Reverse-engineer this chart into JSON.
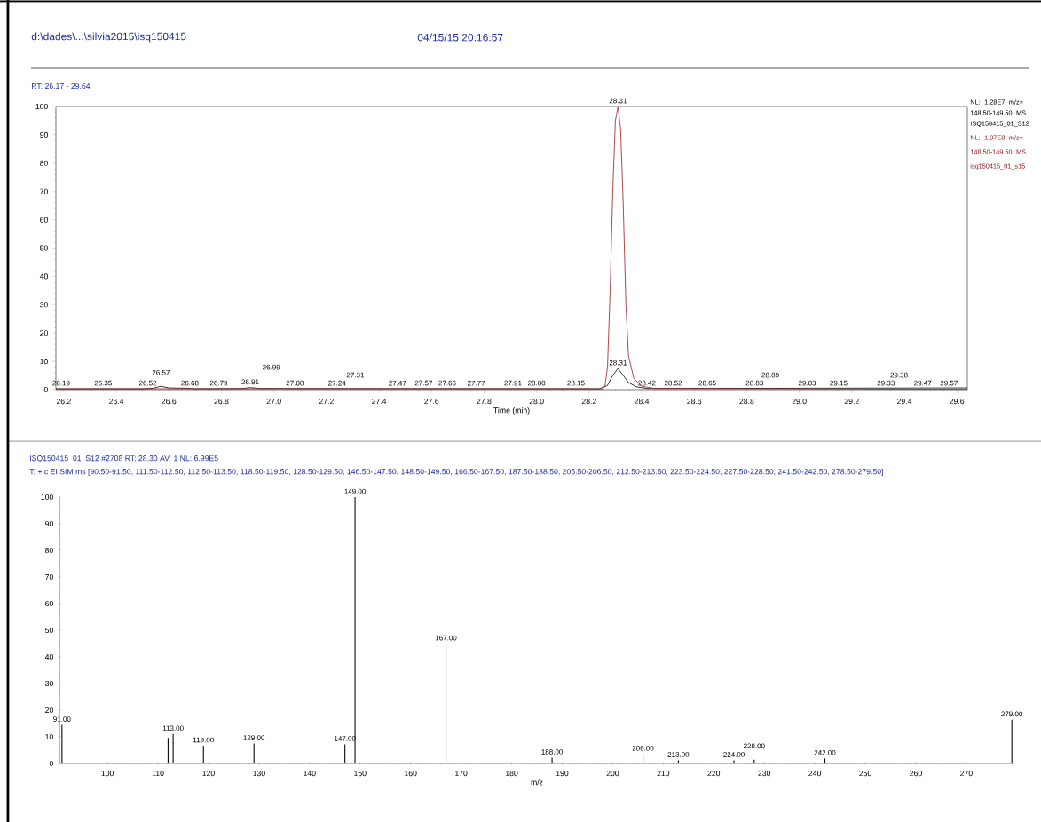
{
  "chart_data": [
    {
      "type": "line",
      "title": "d:\\dades\\...\\silvia2015\\isq150415",
      "subtitle": "04/15/15 20:16:57",
      "xlabel": "Time (min)",
      "xlim": [
        26.17,
        29.64
      ],
      "ylim": [
        0,
        100
      ],
      "xticks": [
        26.2,
        26.4,
        26.6,
        26.8,
        {
          "value": 27.0,
          "label": "27.0"
        },
        27.2,
        27.4,
        27.6,
        27.8,
        {
          "value": 28.0,
          "label": "28.0"
        },
        28.2,
        28.4,
        28.6,
        28.8,
        {
          "value": 29.0,
          "label": "29.0"
        },
        29.2,
        29.4,
        29.6
      ],
      "yticks": [
        0,
        10,
        20,
        30,
        40,
        50,
        60,
        70,
        80,
        90,
        100
      ],
      "series": [
        {
          "name": "NL: 1.28E7 m/z= 148.50-149.50 MS ISQ150415_01_S12",
          "color": "#000000",
          "x": [
            26.17,
            26.5,
            26.54,
            26.57,
            26.6,
            26.66,
            26.7,
            26.88,
            26.91,
            26.95,
            28.24,
            28.27,
            28.29,
            28.31,
            28.33,
            28.35,
            28.38,
            28.42,
            29.64
          ],
          "values": [
            0.3,
            0.3,
            0.5,
            1.2,
            0.6,
            0.5,
            0.3,
            0.4,
            0.7,
            0.4,
            0.3,
            1.5,
            5,
            7.5,
            5,
            2.5,
            1,
            0.4,
            0.6
          ]
        },
        {
          "name": "NL: 1.97E8 m/z= 148.50-149.50 MS isq150415_01_s15",
          "color": "#9b1c1c",
          "x": [
            26.17,
            28.25,
            28.26,
            28.27,
            28.28,
            28.29,
            28.3,
            28.31,
            28.32,
            28.33,
            28.34,
            28.35,
            28.37,
            28.4,
            28.45,
            29.64
          ],
          "values": [
            0.3,
            0.3,
            1,
            8,
            35,
            70,
            95,
            100,
            92,
            65,
            30,
            12,
            4,
            1.2,
            0.4,
            0.1
          ]
        }
      ],
      "annotations": [
        "RT: 26.17 - 29.64",
        {
          "text": "26.19",
          "x": 26.19,
          "y": 0.3
        },
        {
          "text": "26.35",
          "x": 26.35,
          "y": 0.3
        },
        {
          "text": "26.52",
          "x": 26.52,
          "y": 0.3
        },
        {
          "text": "26.57",
          "x": 26.57,
          "y": 1.2
        },
        {
          "text": "26.68",
          "x": 26.68,
          "y": 0.3
        },
        {
          "text": "26.79",
          "x": 26.79,
          "y": 0.3
        },
        {
          "text": "26.91",
          "x": 26.91,
          "y": 0.7
        },
        {
          "text": "26.99",
          "x": 26.99,
          "y": 0.3
        },
        {
          "text": "27.08",
          "x": 27.08,
          "y": 0.3
        },
        {
          "text": "27.24",
          "x": 27.24,
          "y": 0.3
        },
        {
          "text": "27.31",
          "x": 27.31,
          "y": 0.3
        },
        {
          "text": "27.47",
          "x": 27.47,
          "y": 0.3
        },
        {
          "text": "27.57",
          "x": 27.57,
          "y": 0.3
        },
        {
          "text": "27.66",
          "x": 27.66,
          "y": 0.3
        },
        {
          "text": "27.77",
          "x": 27.77,
          "y": 0.3
        },
        {
          "text": "27.91",
          "x": 27.91,
          "y": 0.3
        },
        {
          "text": "28.00",
          "x": 28.0,
          "y": 0.3
        },
        {
          "text": "28.15",
          "x": 28.15,
          "y": 0.3
        },
        {
          "text": "28.31",
          "x": 28.31,
          "y": 100
        },
        {
          "text": "28.31",
          "x": 28.31,
          "y": 7.5
        },
        {
          "text": "28.42",
          "x": 28.42,
          "y": 0.3
        },
        {
          "text": "28.52",
          "x": 28.52,
          "y": 0.3
        },
        {
          "text": "28.65",
          "x": 28.65,
          "y": 0.3
        },
        {
          "text": "28.83",
          "x": 28.83,
          "y": 0.3
        },
        {
          "text": "28.89",
          "x": 28.89,
          "y": 0.3
        },
        {
          "text": "29.03",
          "x": 29.03,
          "y": 0.3
        },
        {
          "text": "29.15",
          "x": 29.15,
          "y": 0.3
        },
        {
          "text": "29.33",
          "x": 29.33,
          "y": 0.3
        },
        {
          "text": "29.38",
          "x": 29.38,
          "y": 0.3
        },
        {
          "text": "29.47",
          "x": 29.47,
          "y": 0.3
        },
        {
          "text": "29.57",
          "x": 29.57,
          "y": 0.3
        }
      ]
    },
    {
      "type": "bar",
      "title": "ISQ150415_01_S12 #2708 RT: 28.30 AV: 1 NL: 6.99E5",
      "subtitle": "T: + c EI SIM ms [90.50-91.50, 111.50-112.50, 112.50-113.50, 118.50-119.50, 128.50-129.50, 146.50-147.50, 148.50-149.50, 166.50-167.50, 187.50-188.50, 205.50-206.50, 212.50-213.50, 223.50-224.50, 227.50-228.50, 241.50-242.50, 278.50-279.50]",
      "xlabel": "m/z",
      "xlim": [
        90.5,
        279.5
      ],
      "ylim": [
        0,
        100
      ],
      "xticks": [
        100,
        110,
        120,
        130,
        140,
        150,
        160,
        170,
        180,
        190,
        200,
        210,
        220,
        230,
        240,
        250,
        260,
        270
      ],
      "yticks": [
        0,
        10,
        20,
        30,
        40,
        50,
        60,
        70,
        80,
        90,
        100
      ],
      "color": "#000000",
      "x": [
        91,
        112,
        113,
        119,
        129,
        147,
        149,
        167,
        188,
        206,
        213,
        224,
        228,
        242,
        279
      ],
      "values": [
        14.5,
        9.6,
        11.1,
        6.7,
        7.5,
        7.2,
        100,
        45,
        2.2,
        3.6,
        1.2,
        1.2,
        1.4,
        1.9,
        16.4
      ],
      "annotations": [
        {
          "text": "91.00",
          "x": 91,
          "y": 14.5
        },
        {
          "text": "113.00",
          "x": 113,
          "y": 11.1
        },
        {
          "text": "119.00",
          "x": 119,
          "y": 6.7
        },
        {
          "text": "129.00",
          "x": 129,
          "y": 7.5
        },
        {
          "text": "147.00",
          "x": 147,
          "y": 7.2
        },
        {
          "text": "149.00",
          "x": 149,
          "y": 100
        },
        {
          "text": "167.00",
          "x": 167,
          "y": 45
        },
        {
          "text": "188.00",
          "x": 188,
          "y": 2.2
        },
        {
          "text": "206.00",
          "x": 206,
          "y": 3.6
        },
        {
          "text": "213.00",
          "x": 213,
          "y": 1.2
        },
        {
          "text": "224.00",
          "x": 224,
          "y": 1.2
        },
        {
          "text": "228.00",
          "x": 228,
          "y": 1.4
        },
        {
          "text": "242.00",
          "x": 242,
          "y": 1.9
        },
        {
          "text": "279.00",
          "x": 279,
          "y": 16.4
        }
      ]
    }
  ]
}
